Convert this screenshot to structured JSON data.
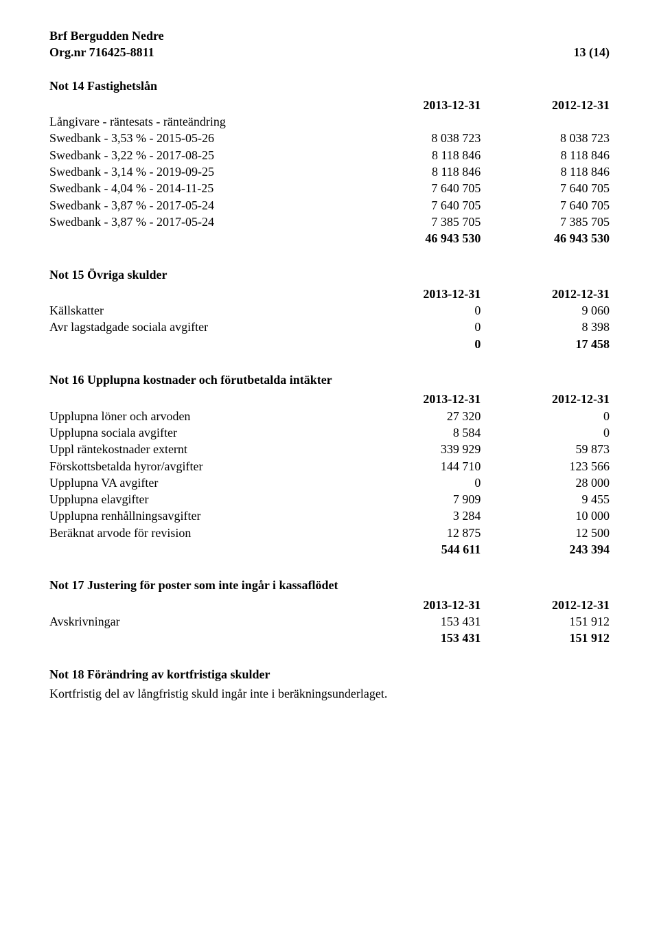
{
  "header": {
    "company": "Brf Bergudden Nedre",
    "orgnr_label": "Org.nr 716425-8811",
    "page_number": "13 (14)"
  },
  "col_headers": {
    "c1": "2013-12-31",
    "c2": "2012-12-31"
  },
  "not14": {
    "title": "Not 14 Fastighetslån",
    "subheader": "Långivare - räntesats - ränteändring",
    "rows": [
      {
        "label": "Swedbank - 3,53 % - 2015-05-26",
        "v1": "8 038 723",
        "v2": "8 038 723"
      },
      {
        "label": "Swedbank - 3,22 % - 2017-08-25",
        "v1": "8 118 846",
        "v2": "8 118 846"
      },
      {
        "label": "Swedbank - 3,14 % - 2019-09-25",
        "v1": "8 118 846",
        "v2": "8 118 846"
      },
      {
        "label": "Swedbank - 4,04 % - 2014-11-25",
        "v1": "7 640 705",
        "v2": "7 640 705"
      },
      {
        "label": "Swedbank - 3,87 % - 2017-05-24",
        "v1": "7 640 705",
        "v2": "7 640 705"
      },
      {
        "label": "Swedbank - 3,87 % - 2017-05-24",
        "v1": "7 385 705",
        "v2": "7 385 705"
      }
    ],
    "total": {
      "v1": "46 943 530",
      "v2": "46 943 530"
    }
  },
  "not15": {
    "title": "Not 15 Övriga skulder",
    "rows": [
      {
        "label": "Källskatter",
        "v1": "0",
        "v2": "9 060"
      },
      {
        "label": "Avr lagstadgade sociala avgifter",
        "v1": "0",
        "v2": "8 398"
      }
    ],
    "total": {
      "v1": "0",
      "v2": "17 458"
    }
  },
  "not16": {
    "title": "Not 16 Upplupna kostnader och förutbetalda intäkter",
    "rows": [
      {
        "label": "Upplupna löner och arvoden",
        "v1": "27 320",
        "v2": "0"
      },
      {
        "label": "Upplupna sociala avgifter",
        "v1": "8 584",
        "v2": "0"
      },
      {
        "label": "Uppl räntekostnader externt",
        "v1": "339 929",
        "v2": "59 873"
      },
      {
        "label": "Förskottsbetalda hyror/avgifter",
        "v1": "144 710",
        "v2": "123 566"
      },
      {
        "label": "Upplupna VA avgifter",
        "v1": "0",
        "v2": "28 000"
      },
      {
        "label": "Upplupna elavgifter",
        "v1": "7 909",
        "v2": "9 455"
      },
      {
        "label": "Upplupna renhållningsavgifter",
        "v1": "3 284",
        "v2": "10 000"
      },
      {
        "label": "Beräknat arvode för revision",
        "v1": "12 875",
        "v2": "12 500"
      }
    ],
    "total": {
      "v1": "544 611",
      "v2": "243 394"
    }
  },
  "not17": {
    "title": "Not 17 Justering för poster som inte ingår i kassaflödet",
    "rows": [
      {
        "label": "Avskrivningar",
        "v1": "153 431",
        "v2": "151 912"
      }
    ],
    "total": {
      "v1": "153 431",
      "v2": "151 912"
    }
  },
  "not18": {
    "title": "Not 18 Förändring av kortfristiga skulder",
    "body": "Kortfristig del av långfristig skuld ingår inte i beräkningsunderlaget."
  }
}
